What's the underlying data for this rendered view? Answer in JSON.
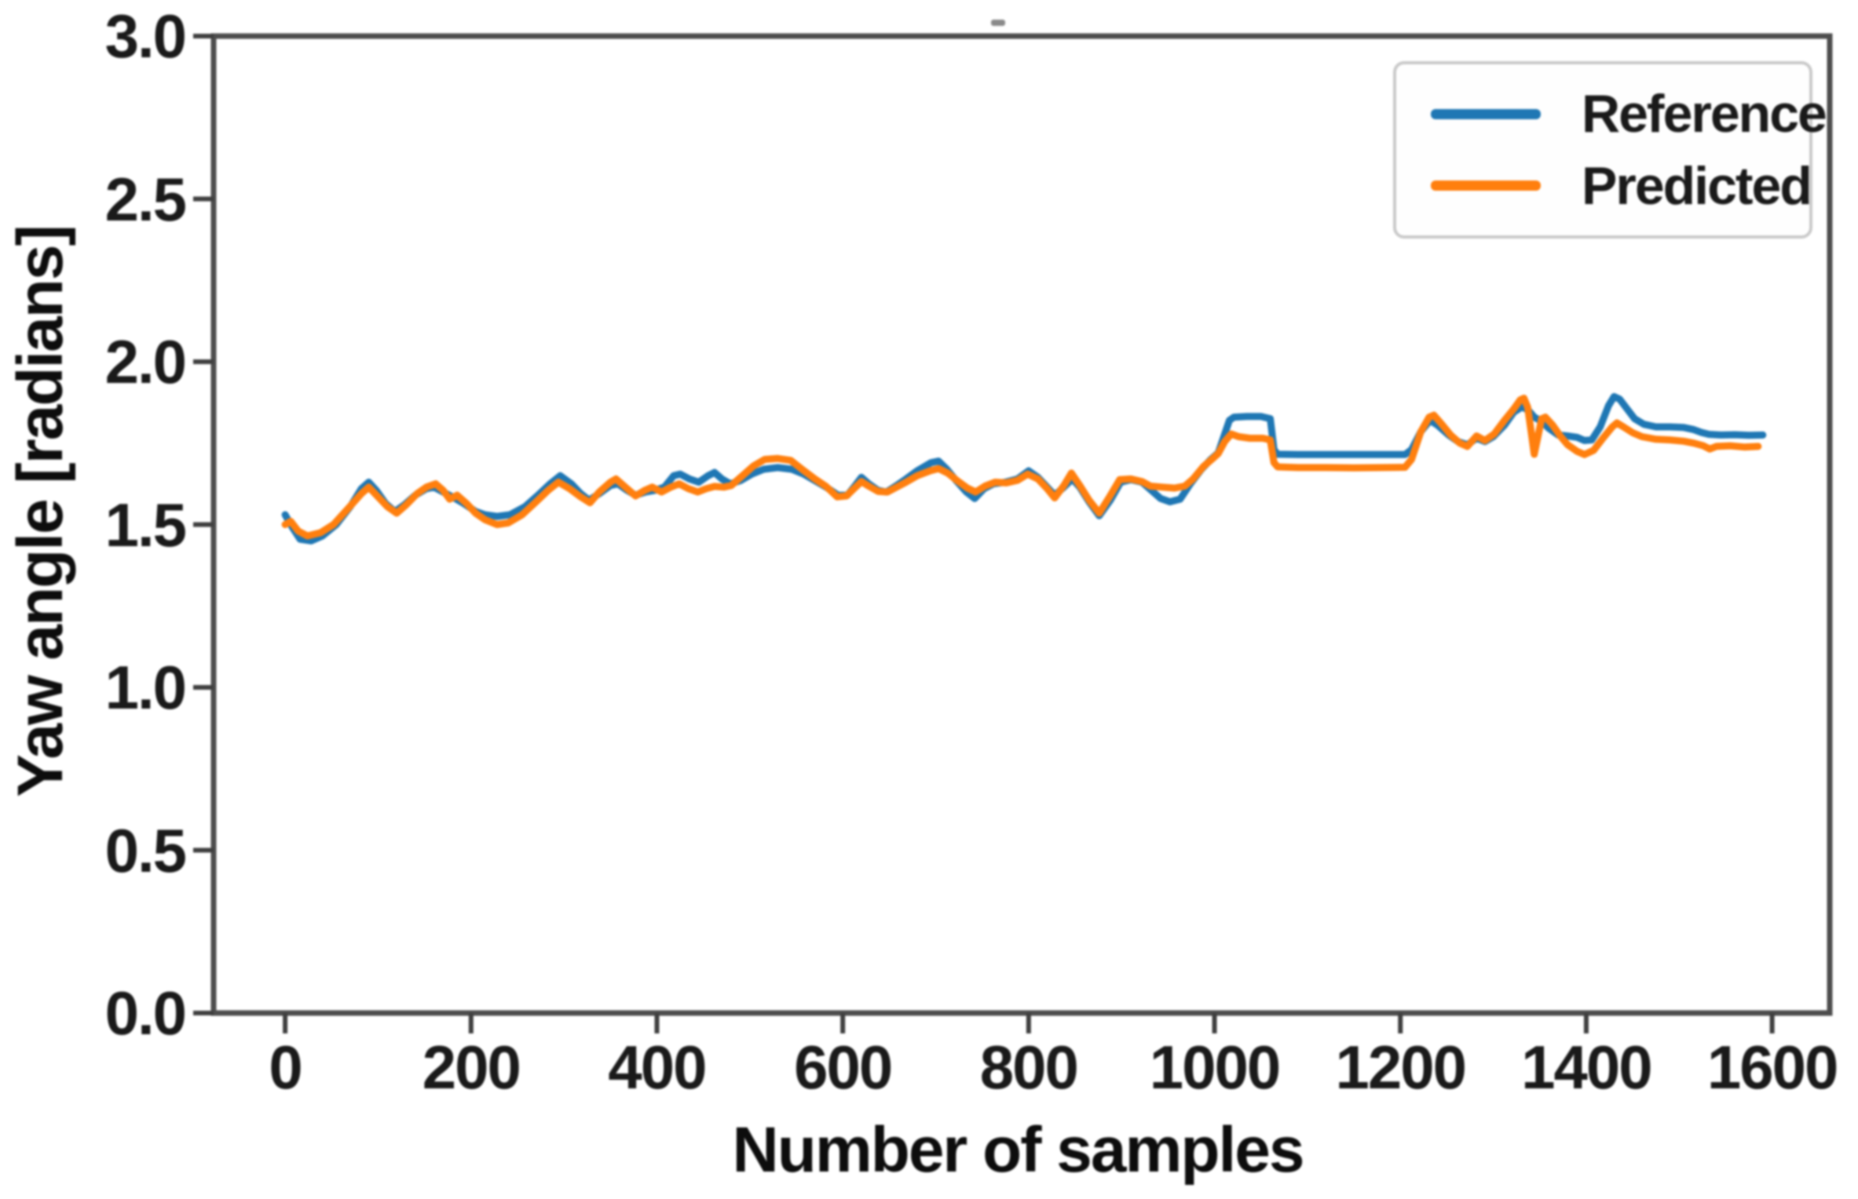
{
  "chart_data": {
    "type": "line",
    "title": "",
    "xlabel": "Number of samples",
    "ylabel": "Yaw angle [radians]",
    "xlim": [
      -77,
      1662
    ],
    "ylim": [
      0.0,
      3.0
    ],
    "grid": false,
    "x_ticks": [
      {
        "label": "0",
        "value": 0
      },
      {
        "label": "200",
        "value": 200
      },
      {
        "label": "400",
        "value": 400
      },
      {
        "label": "600",
        "value": 600
      },
      {
        "label": "800",
        "value": 800
      },
      {
        "label": "1000",
        "value": 1000
      },
      {
        "label": "1200",
        "value": 1200
      },
      {
        "label": "1400",
        "value": 1400
      },
      {
        "label": "1600",
        "value": 1600
      }
    ],
    "y_ticks": [
      {
        "label": "0.0",
        "value": 0.0
      },
      {
        "label": "0.5",
        "value": 0.5
      },
      {
        "label": "1.0",
        "value": 1.0
      },
      {
        "label": "1.5",
        "value": 1.5
      },
      {
        "label": "2.0",
        "value": 2.0
      },
      {
        "label": "2.5",
        "value": 2.5
      },
      {
        "label": "3.0",
        "value": 3.0
      }
    ],
    "legend": {
      "position": "upper right",
      "entries": [
        {
          "label": "Reference",
          "color": "#1f77b4"
        },
        {
          "label": "Predicted",
          "color": "#ff7f0e"
        }
      ]
    },
    "series": [
      {
        "name": "Reference",
        "color": "#1f77b4",
        "points": [
          [
            0,
            1.53
          ],
          [
            8,
            1.49
          ],
          [
            16,
            1.455
          ],
          [
            28,
            1.45
          ],
          [
            40,
            1.465
          ],
          [
            55,
            1.5
          ],
          [
            70,
            1.555
          ],
          [
            82,
            1.61
          ],
          [
            90,
            1.63
          ],
          [
            98,
            1.605
          ],
          [
            108,
            1.565
          ],
          [
            118,
            1.54
          ],
          [
            128,
            1.56
          ],
          [
            140,
            1.59
          ],
          [
            152,
            1.61
          ],
          [
            160,
            1.615
          ],
          [
            170,
            1.6
          ],
          [
            180,
            1.585
          ],
          [
            192,
            1.565
          ],
          [
            205,
            1.54
          ],
          [
            215,
            1.53
          ],
          [
            228,
            1.525
          ],
          [
            242,
            1.53
          ],
          [
            258,
            1.555
          ],
          [
            272,
            1.59
          ],
          [
            285,
            1.625
          ],
          [
            296,
            1.65
          ],
          [
            308,
            1.625
          ],
          [
            318,
            1.595
          ],
          [
            327,
            1.575
          ],
          [
            338,
            1.595
          ],
          [
            350,
            1.62
          ],
          [
            358,
            1.625
          ],
          [
            368,
            1.605
          ],
          [
            377,
            1.59
          ],
          [
            388,
            1.6
          ],
          [
            398,
            1.605
          ],
          [
            408,
            1.615
          ],
          [
            418,
            1.65
          ],
          [
            425,
            1.655
          ],
          [
            435,
            1.64
          ],
          [
            445,
            1.63
          ],
          [
            455,
            1.65
          ],
          [
            462,
            1.66
          ],
          [
            470,
            1.64
          ],
          [
            479,
            1.625
          ],
          [
            490,
            1.635
          ],
          [
            502,
            1.655
          ],
          [
            515,
            1.67
          ],
          [
            530,
            1.675
          ],
          [
            545,
            1.67
          ],
          [
            558,
            1.655
          ],
          [
            570,
            1.635
          ],
          [
            582,
            1.615
          ],
          [
            595,
            1.59
          ],
          [
            605,
            1.59
          ],
          [
            612,
            1.615
          ],
          [
            620,
            1.645
          ],
          [
            628,
            1.625
          ],
          [
            638,
            1.605
          ],
          [
            647,
            1.6
          ],
          [
            658,
            1.62
          ],
          [
            668,
            1.64
          ],
          [
            680,
            1.665
          ],
          [
            695,
            1.69
          ],
          [
            703,
            1.695
          ],
          [
            712,
            1.67
          ],
          [
            722,
            1.635
          ],
          [
            733,
            1.6
          ],
          [
            742,
            1.58
          ],
          [
            752,
            1.61
          ],
          [
            762,
            1.625
          ],
          [
            775,
            1.63
          ],
          [
            788,
            1.64
          ],
          [
            800,
            1.665
          ],
          [
            810,
            1.645
          ],
          [
            820,
            1.615
          ],
          [
            828,
            1.59
          ],
          [
            838,
            1.615
          ],
          [
            847,
            1.64
          ],
          [
            855,
            1.615
          ],
          [
            865,
            1.57
          ],
          [
            876,
            1.527
          ],
          [
            888,
            1.575
          ],
          [
            899,
            1.63
          ],
          [
            910,
            1.638
          ],
          [
            922,
            1.63
          ],
          [
            932,
            1.605
          ],
          [
            942,
            1.58
          ],
          [
            952,
            1.57
          ],
          [
            963,
            1.578
          ],
          [
            974,
            1.625
          ],
          [
            986,
            1.67
          ],
          [
            996,
            1.7
          ],
          [
            1004,
            1.72
          ],
          [
            1010,
            1.77
          ],
          [
            1016,
            1.82
          ],
          [
            1021,
            1.83
          ],
          [
            1035,
            1.832
          ],
          [
            1050,
            1.832
          ],
          [
            1060,
            1.825
          ],
          [
            1064,
            1.73
          ],
          [
            1068,
            1.716
          ],
          [
            1090,
            1.715
          ],
          [
            1120,
            1.715
          ],
          [
            1150,
            1.715
          ],
          [
            1180,
            1.715
          ],
          [
            1205,
            1.715
          ],
          [
            1212,
            1.73
          ],
          [
            1222,
            1.785
          ],
          [
            1232,
            1.82
          ],
          [
            1240,
            1.805
          ],
          [
            1252,
            1.775
          ],
          [
            1262,
            1.755
          ],
          [
            1272,
            1.745
          ],
          [
            1282,
            1.765
          ],
          [
            1291,
            1.755
          ],
          [
            1300,
            1.77
          ],
          [
            1312,
            1.805
          ],
          [
            1322,
            1.845
          ],
          [
            1331,
            1.862
          ],
          [
            1338,
            1.85
          ],
          [
            1344,
            1.83
          ],
          [
            1352,
            1.817
          ],
          [
            1360,
            1.795
          ],
          [
            1370,
            1.775
          ],
          [
            1380,
            1.772
          ],
          [
            1390,
            1.768
          ],
          [
            1398,
            1.758
          ],
          [
            1406,
            1.76
          ],
          [
            1415,
            1.8
          ],
          [
            1424,
            1.865
          ],
          [
            1430,
            1.893
          ],
          [
            1436,
            1.885
          ],
          [
            1444,
            1.855
          ],
          [
            1452,
            1.825
          ],
          [
            1462,
            1.808
          ],
          [
            1475,
            1.8
          ],
          [
            1490,
            1.8
          ],
          [
            1505,
            1.798
          ],
          [
            1515,
            1.792
          ],
          [
            1524,
            1.783
          ],
          [
            1532,
            1.777
          ],
          [
            1545,
            1.775
          ],
          [
            1560,
            1.776
          ],
          [
            1575,
            1.774
          ],
          [
            1590,
            1.775
          ]
        ]
      },
      {
        "name": "Predicted",
        "color": "#ff7f0e",
        "points": [
          [
            0,
            1.5
          ],
          [
            6,
            1.51
          ],
          [
            14,
            1.48
          ],
          [
            24,
            1.465
          ],
          [
            38,
            1.475
          ],
          [
            52,
            1.5
          ],
          [
            68,
            1.55
          ],
          [
            82,
            1.595
          ],
          [
            90,
            1.615
          ],
          [
            100,
            1.585
          ],
          [
            110,
            1.555
          ],
          [
            120,
            1.535
          ],
          [
            130,
            1.56
          ],
          [
            142,
            1.595
          ],
          [
            152,
            1.615
          ],
          [
            162,
            1.625
          ],
          [
            170,
            1.605
          ],
          [
            177,
            1.578
          ],
          [
            185,
            1.59
          ],
          [
            195,
            1.565
          ],
          [
            205,
            1.535
          ],
          [
            215,
            1.515
          ],
          [
            228,
            1.5
          ],
          [
            240,
            1.505
          ],
          [
            255,
            1.53
          ],
          [
            270,
            1.57
          ],
          [
            283,
            1.605
          ],
          [
            294,
            1.63
          ],
          [
            306,
            1.61
          ],
          [
            318,
            1.585
          ],
          [
            328,
            1.567
          ],
          [
            338,
            1.6
          ],
          [
            350,
            1.63
          ],
          [
            356,
            1.64
          ],
          [
            366,
            1.615
          ],
          [
            377,
            1.588
          ],
          [
            387,
            1.605
          ],
          [
            395,
            1.615
          ],
          [
            405,
            1.6
          ],
          [
            415,
            1.615
          ],
          [
            424,
            1.625
          ],
          [
            434,
            1.61
          ],
          [
            444,
            1.6
          ],
          [
            453,
            1.61
          ],
          [
            462,
            1.617
          ],
          [
            472,
            1.615
          ],
          [
            480,
            1.62
          ],
          [
            492,
            1.65
          ],
          [
            504,
            1.68
          ],
          [
            516,
            1.7
          ],
          [
            530,
            1.703
          ],
          [
            544,
            1.697
          ],
          [
            557,
            1.668
          ],
          [
            570,
            1.64
          ],
          [
            582,
            1.617
          ],
          [
            594,
            1.585
          ],
          [
            604,
            1.588
          ],
          [
            612,
            1.61
          ],
          [
            620,
            1.632
          ],
          [
            628,
            1.618
          ],
          [
            638,
            1.602
          ],
          [
            648,
            1.6
          ],
          [
            658,
            1.615
          ],
          [
            668,
            1.63
          ],
          [
            680,
            1.65
          ],
          [
            694,
            1.665
          ],
          [
            703,
            1.672
          ],
          [
            713,
            1.658
          ],
          [
            723,
            1.635
          ],
          [
            734,
            1.612
          ],
          [
            743,
            1.6
          ],
          [
            753,
            1.618
          ],
          [
            764,
            1.63
          ],
          [
            776,
            1.628
          ],
          [
            788,
            1.636
          ],
          [
            799,
            1.655
          ],
          [
            810,
            1.64
          ],
          [
            820,
            1.61
          ],
          [
            828,
            1.582
          ],
          [
            838,
            1.62
          ],
          [
            846,
            1.658
          ],
          [
            855,
            1.62
          ],
          [
            865,
            1.575
          ],
          [
            876,
            1.535
          ],
          [
            887,
            1.585
          ],
          [
            898,
            1.638
          ],
          [
            910,
            1.64
          ],
          [
            922,
            1.632
          ],
          [
            931,
            1.618
          ],
          [
            944,
            1.615
          ],
          [
            957,
            1.612
          ],
          [
            968,
            1.618
          ],
          [
            977,
            1.64
          ],
          [
            988,
            1.678
          ],
          [
            997,
            1.7
          ],
          [
            1004,
            1.718
          ],
          [
            1011,
            1.755
          ],
          [
            1018,
            1.778
          ],
          [
            1026,
            1.77
          ],
          [
            1038,
            1.765
          ],
          [
            1052,
            1.765
          ],
          [
            1060,
            1.76
          ],
          [
            1064,
            1.69
          ],
          [
            1068,
            1.677
          ],
          [
            1090,
            1.675
          ],
          [
            1120,
            1.675
          ],
          [
            1150,
            1.674
          ],
          [
            1180,
            1.675
          ],
          [
            1205,
            1.676
          ],
          [
            1212,
            1.7
          ],
          [
            1222,
            1.785
          ],
          [
            1231,
            1.83
          ],
          [
            1236,
            1.836
          ],
          [
            1244,
            1.81
          ],
          [
            1254,
            1.775
          ],
          [
            1264,
            1.75
          ],
          [
            1272,
            1.74
          ],
          [
            1282,
            1.772
          ],
          [
            1291,
            1.758
          ],
          [
            1301,
            1.778
          ],
          [
            1312,
            1.82
          ],
          [
            1322,
            1.855
          ],
          [
            1329,
            1.883
          ],
          [
            1333,
            1.888
          ],
          [
            1337,
            1.86
          ],
          [
            1341,
            1.78
          ],
          [
            1344,
            1.716
          ],
          [
            1348,
            1.77
          ],
          [
            1352,
            1.825
          ],
          [
            1356,
            1.83
          ],
          [
            1364,
            1.805
          ],
          [
            1372,
            1.772
          ],
          [
            1380,
            1.745
          ],
          [
            1390,
            1.725
          ],
          [
            1398,
            1.715
          ],
          [
            1408,
            1.728
          ],
          [
            1418,
            1.765
          ],
          [
            1428,
            1.8
          ],
          [
            1433,
            1.812
          ],
          [
            1440,
            1.8
          ],
          [
            1450,
            1.782
          ],
          [
            1460,
            1.77
          ],
          [
            1475,
            1.762
          ],
          [
            1490,
            1.76
          ],
          [
            1505,
            1.756
          ],
          [
            1516,
            1.75
          ],
          [
            1526,
            1.742
          ],
          [
            1533,
            1.732
          ],
          [
            1540,
            1.74
          ],
          [
            1555,
            1.742
          ],
          [
            1570,
            1.738
          ],
          [
            1585,
            1.74
          ]
        ]
      }
    ],
    "style": {
      "spine_color": "#4d4d4d",
      "tick_color": "#3f3f3f",
      "line_width": 9
    }
  }
}
